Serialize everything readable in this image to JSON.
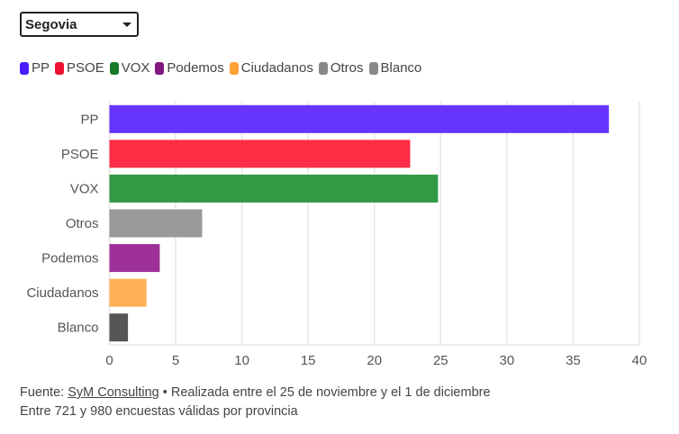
{
  "selector": {
    "selected": "Segovia"
  },
  "chart_data": {
    "type": "bar",
    "orientation": "horizontal",
    "categories": [
      "PP",
      "PSOE",
      "VOX",
      "Otros",
      "Podemos",
      "Ciudadanos",
      "Blanco"
    ],
    "values": [
      37.7,
      22.7,
      24.8,
      7.0,
      3.8,
      2.8,
      1.4
    ],
    "colors": [
      "#6633ff",
      "#ff2d45",
      "#339944",
      "#999999",
      "#9e3099",
      "#ffb155",
      "#555555"
    ],
    "xlim": [
      0,
      40
    ],
    "xticks": [
      "0",
      "5",
      "10",
      "15",
      "20",
      "25",
      "30",
      "35",
      "40"
    ],
    "grid": true,
    "legend_position": "top",
    "legend": [
      {
        "label": "PP",
        "color": "#4b1cff"
      },
      {
        "label": "PSOE",
        "color": "#ee1130"
      },
      {
        "label": "VOX",
        "color": "#167a2a"
      },
      {
        "label": "Podemos",
        "color": "#801880"
      },
      {
        "label": "Ciudadanos",
        "color": "#ffa238"
      },
      {
        "label": "Otros",
        "color": "#888888"
      },
      {
        "label": "Blanco",
        "color": "#888888"
      }
    ]
  },
  "footer": {
    "source_prefix": "Fuente: ",
    "source_link": "SyM Consulting",
    "source_suffix": " • Realizada entre el 25 de noviembre y el 1 de diciembre",
    "line2": "Entre 721 y 980 encuestas válidas por provincia"
  }
}
